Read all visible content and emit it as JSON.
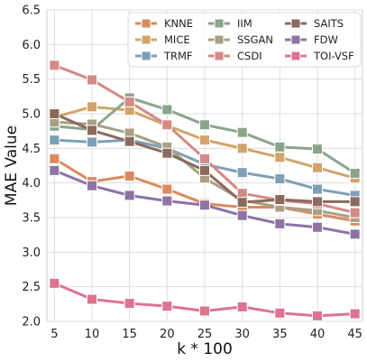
{
  "chart_data": {
    "type": "line",
    "xlabel": "k * 100",
    "ylabel": "MAE Value",
    "x": [
      5,
      10,
      15,
      20,
      25,
      30,
      35,
      40,
      45
    ],
    "x_ticks": [
      "5",
      "10",
      "15",
      "20",
      "25",
      "30",
      "35",
      "40",
      "45"
    ],
    "ylim": [
      2.0,
      6.5
    ],
    "y_ticks": [
      "2.0",
      "2.5",
      "3.0",
      "3.5",
      "4.0",
      "4.5",
      "5.0",
      "5.5",
      "6.0",
      "6.5"
    ],
    "grid": true,
    "legend_position": "top-right",
    "legend_columns": 3,
    "series": [
      {
        "name": "KNNE",
        "color": "#d98b5f",
        "values": [
          4.35,
          4.02,
          4.1,
          3.91,
          3.7,
          3.65,
          3.65,
          3.55,
          3.45
        ]
      },
      {
        "name": "MICE",
        "color": "#d2a46b",
        "values": [
          4.95,
          5.1,
          5.05,
          4.83,
          4.62,
          4.5,
          4.37,
          4.22,
          4.07
        ]
      },
      {
        "name": "TRMF",
        "color": "#7f9fb4",
        "values": [
          4.62,
          4.59,
          4.62,
          4.5,
          4.27,
          4.15,
          4.06,
          3.91,
          3.82
        ]
      },
      {
        "name": "IIM",
        "color": "#8aa58c",
        "values": [
          4.82,
          4.77,
          5.23,
          5.06,
          4.84,
          4.73,
          4.52,
          4.49,
          4.14
        ]
      },
      {
        "name": "SSGAN",
        "color": "#a8a085",
        "values": [
          4.88,
          4.85,
          4.72,
          4.52,
          4.07,
          3.75,
          3.65,
          3.6,
          3.5
        ]
      },
      {
        "name": "CSDI",
        "color": "#d48a86",
        "values": [
          5.7,
          5.49,
          5.17,
          4.84,
          4.35,
          3.85,
          3.75,
          3.7,
          3.57
        ]
      },
      {
        "name": "SAITS",
        "color": "#8b6a5c",
        "values": [
          5.0,
          4.76,
          4.6,
          4.43,
          4.18,
          3.72,
          3.76,
          3.73,
          3.73
        ]
      },
      {
        "name": "FDW",
        "color": "#8e73a3",
        "values": [
          4.18,
          3.96,
          3.82,
          3.74,
          3.68,
          3.53,
          3.41,
          3.36,
          3.26
        ]
      },
      {
        "name": "TOI-VSF",
        "color": "#dc7490",
        "values": [
          2.55,
          2.32,
          2.26,
          2.22,
          2.15,
          2.21,
          2.12,
          2.08,
          2.11
        ]
      }
    ]
  }
}
